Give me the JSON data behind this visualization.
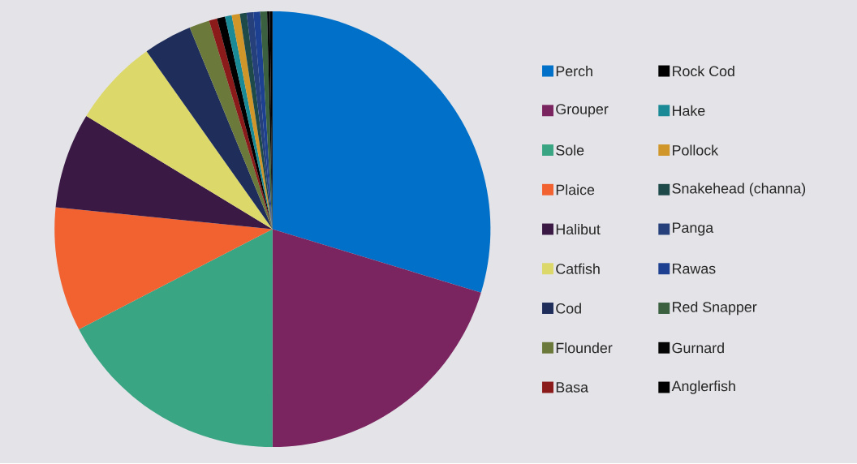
{
  "chart_data": {
    "type": "pie",
    "categories": [
      "Perch",
      "Grouper",
      "Sole",
      "Plaice",
      "Halibut",
      "Catfish",
      "Cod",
      "Flounder",
      "Basa",
      "Rock Cod",
      "Hake",
      "Pollock",
      "Snakehead (channa)",
      "Panga",
      "Rawas",
      "Red Snapper",
      "Gurnard",
      "Anglerfish"
    ],
    "values": [
      29.7,
      20.3,
      17.4,
      9.2,
      7.1,
      6.5,
      3.6,
      1.5,
      0.6,
      0.6,
      0.5,
      0.6,
      0.5,
      0.5,
      0.5,
      0.5,
      0.2,
      0.2
    ],
    "colors": [
      "#0070c8",
      "#7a2560",
      "#3aa582",
      "#f26130",
      "#3a1a45",
      "#dcd86a",
      "#1e2d5a",
      "#6b7a3a",
      "#8b1a1a",
      "#000000",
      "#1a8a96",
      "#d0962a",
      "#1e4a4a",
      "#25407a",
      "#1e4090",
      "#3a6040",
      "#050505",
      "#000000"
    ],
    "legend": "right"
  }
}
